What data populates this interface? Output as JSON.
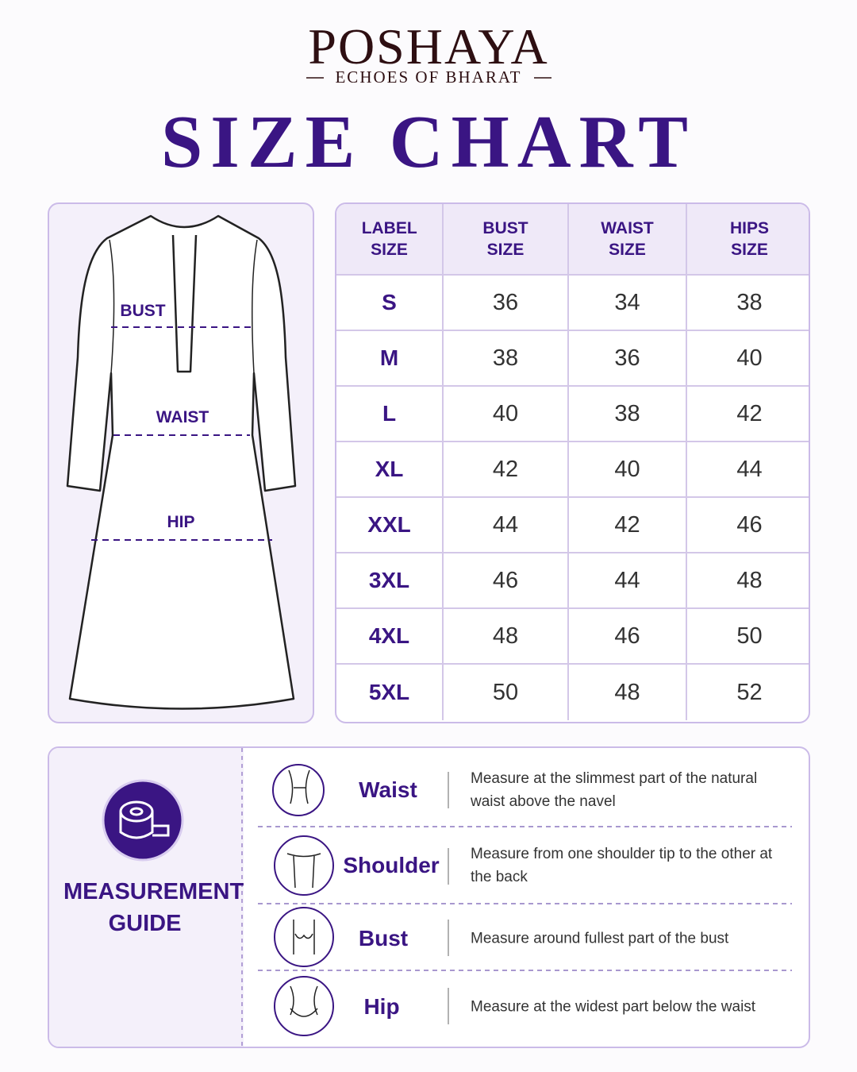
{
  "brand": {
    "name": "POSHAYA",
    "tagline": "ECHOES OF BHARAT"
  },
  "title": "SIZE CHART",
  "garment": {
    "labels": [
      "BUST",
      "WAIST",
      "HIP"
    ]
  },
  "table": {
    "headers": [
      "LABEL SIZE",
      "BUST SIZE",
      "WAIST SIZE",
      "HIPS SIZE"
    ],
    "rows": [
      [
        "S",
        36,
        34,
        38
      ],
      [
        "M",
        38,
        36,
        40
      ],
      [
        "L",
        40,
        38,
        42
      ],
      [
        "XL",
        42,
        40,
        44
      ],
      [
        "XXL",
        44,
        42,
        46
      ],
      [
        "3XL",
        46,
        44,
        48
      ],
      [
        "4XL",
        48,
        46,
        50
      ],
      [
        "5XL",
        50,
        48,
        52
      ]
    ]
  },
  "guide": {
    "title": "MEASUREMENT GUIDE",
    "items": [
      {
        "name": "Waist",
        "text": "Measure at the slimmest part of the natural waist above the navel"
      },
      {
        "name": "Shoulder",
        "text": "Measure from one shoulder tip to the other at the back"
      },
      {
        "name": "Bust",
        "text": "Measure around fullest part of the bust"
      },
      {
        "name": "Hip",
        "text": "Measure at the widest part below the waist"
      }
    ]
  }
}
